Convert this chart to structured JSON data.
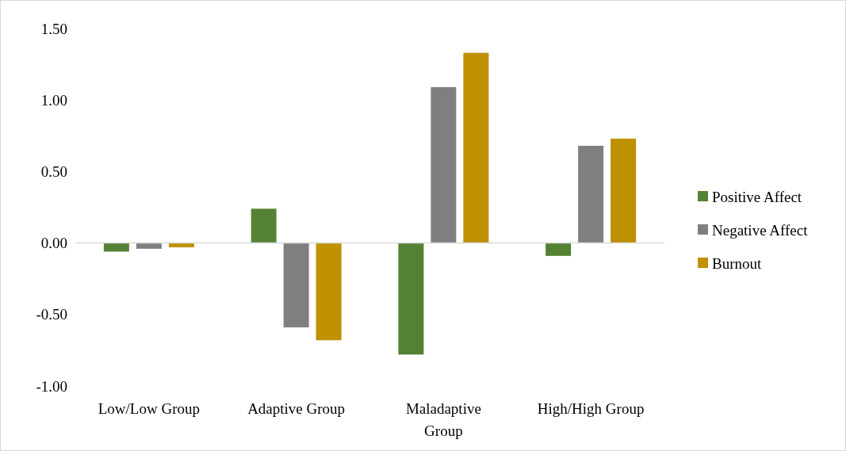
{
  "chart_data": {
    "type": "bar",
    "categories": [
      "Low/Low Group",
      "Adaptive Group",
      "Maladaptive Group",
      "High/High Group"
    ],
    "series": [
      {
        "name": "Positive Affect",
        "color": "#548235",
        "values": [
          -0.06,
          0.24,
          -0.78,
          -0.09
        ]
      },
      {
        "name": "Negative Affect",
        "color": "#7f7f7f",
        "values": [
          -0.04,
          -0.59,
          1.09,
          0.68
        ]
      },
      {
        "name": "Burnout",
        "color": "#bf9000",
        "values": [
          -0.03,
          -0.68,
          1.33,
          0.73
        ]
      }
    ],
    "ylim": [
      -1,
      1.5
    ],
    "yticks": [
      {
        "value": -1,
        "label": "-1.00"
      },
      {
        "value": -0.5,
        "label": "-0.50"
      },
      {
        "value": 0,
        "label": "0.00"
      },
      {
        "value": 0.5,
        "label": "0.50"
      },
      {
        "value": 1,
        "label": "1.00"
      },
      {
        "value": 1.5,
        "label": "1.50"
      }
    ],
    "legend": "right"
  }
}
